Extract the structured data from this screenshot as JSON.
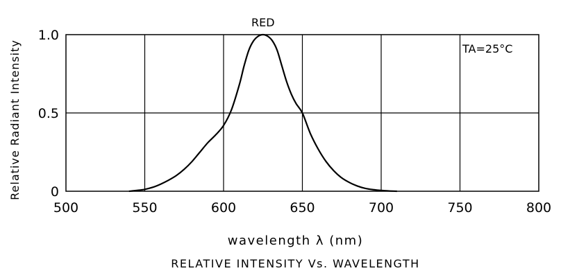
{
  "chart_data": {
    "type": "line",
    "title": "RELATIVE INTENSITY Vs. WAVELENGTH",
    "xlabel": "wavelength λ (nm)",
    "ylabel": "Relative Radiant Intensity",
    "xlim": [
      500,
      800
    ],
    "ylim": [
      0,
      1.0
    ],
    "xticks": [
      500,
      550,
      600,
      650,
      700,
      750,
      800
    ],
    "yticks": [
      0,
      0.5,
      1.0
    ],
    "ytick_labels": [
      "0",
      "0.5",
      "1.0"
    ],
    "grid": true,
    "annotation": "TA=25°C",
    "series": [
      {
        "name": "RED",
        "x": [
          540,
          545,
          550,
          555,
          560,
          565,
          570,
          575,
          580,
          585,
          590,
          595,
          600,
          605,
          610,
          613,
          616,
          619,
          622,
          625,
          628,
          631,
          634,
          637,
          640,
          643,
          646,
          650,
          655,
          660,
          665,
          670,
          675,
          680,
          685,
          690,
          695,
          700,
          705,
          710
        ],
        "y": [
          0.0,
          0.005,
          0.012,
          0.025,
          0.045,
          0.07,
          0.1,
          0.14,
          0.19,
          0.25,
          0.31,
          0.36,
          0.42,
          0.52,
          0.68,
          0.8,
          0.9,
          0.96,
          0.99,
          1.0,
          0.99,
          0.96,
          0.9,
          0.8,
          0.7,
          0.62,
          0.56,
          0.5,
          0.37,
          0.27,
          0.19,
          0.13,
          0.085,
          0.055,
          0.033,
          0.018,
          0.01,
          0.005,
          0.002,
          0.0
        ]
      }
    ]
  }
}
